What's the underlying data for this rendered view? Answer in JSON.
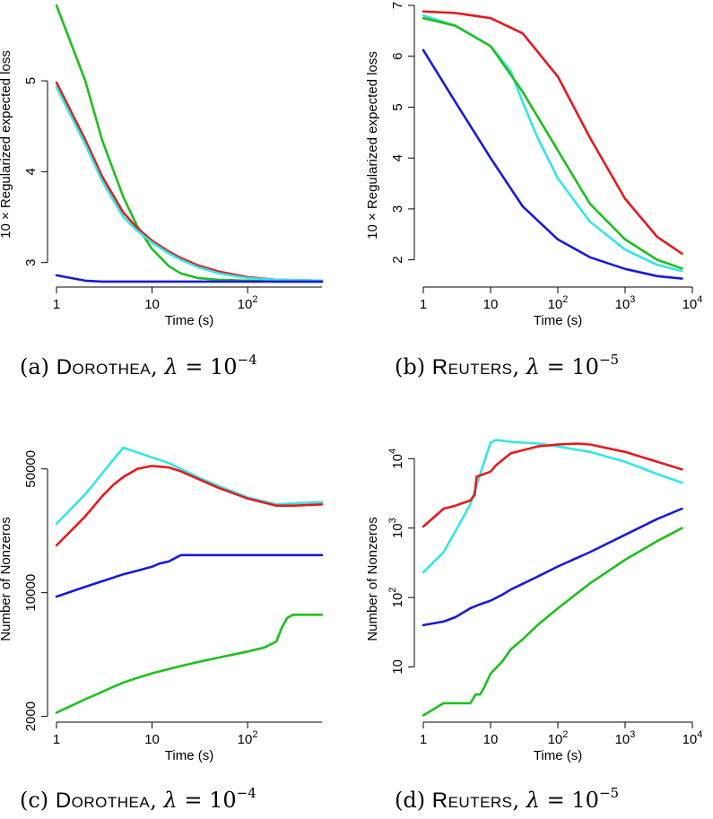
{
  "colors": {
    "red": "#e41a1c",
    "cyan": "#33e6e6",
    "green": "#1fbf1f",
    "blue": "#1a1ad6"
  },
  "chart_data": [
    {
      "type": "line",
      "caption": {
        "letter": "(a)",
        "dataset": "Dorothea",
        "lambda_sym": "λ",
        "eq": "= 10",
        "exp": "−4"
      },
      "xlabel": "Time (s)",
      "ylabel": "10 × Regularized expected loss",
      "xscale": "log",
      "yscale": "linear",
      "xlim": [
        1,
        600
      ],
      "ylim": [
        2.75,
        5.85
      ],
      "xticks": [
        {
          "v": 1,
          "base": "1",
          "exp": ""
        },
        {
          "v": 10,
          "base": "10",
          "exp": ""
        },
        {
          "v": 100,
          "base": "10",
          "exp": "2"
        }
      ],
      "yticks": [
        {
          "v": 3,
          "label": "3"
        },
        {
          "v": 4,
          "label": "4"
        },
        {
          "v": 5,
          "label": "5"
        }
      ],
      "series": [
        {
          "color": "green",
          "x": [
            1,
            2,
            3,
            5,
            7,
            10,
            15,
            20,
            30,
            50,
            100,
            200,
            600
          ],
          "y": [
            5.83,
            5.0,
            4.35,
            3.72,
            3.4,
            3.15,
            2.96,
            2.88,
            2.83,
            2.81,
            2.8,
            2.79,
            2.79
          ]
        },
        {
          "color": "red",
          "x": [
            1,
            2,
            3,
            5,
            7,
            10,
            15,
            20,
            30,
            50,
            100,
            200,
            600
          ],
          "y": [
            4.98,
            4.35,
            3.95,
            3.55,
            3.38,
            3.24,
            3.12,
            3.05,
            2.97,
            2.9,
            2.84,
            2.81,
            2.8
          ]
        },
        {
          "color": "cyan",
          "x": [
            1,
            2,
            3,
            5,
            7,
            10,
            15,
            20,
            30,
            50,
            100,
            200,
            600
          ],
          "y": [
            4.93,
            4.3,
            3.9,
            3.5,
            3.35,
            3.22,
            3.1,
            3.03,
            2.95,
            2.88,
            2.83,
            2.81,
            2.8
          ]
        },
        {
          "color": "blue",
          "x": [
            1,
            2,
            3,
            10,
            100,
            600
          ],
          "y": [
            2.86,
            2.8,
            2.79,
            2.79,
            2.79,
            2.79
          ]
        }
      ]
    },
    {
      "type": "line",
      "caption": {
        "letter": "(b)",
        "dataset": "Reuters",
        "lambda_sym": "λ",
        "eq": "= 10",
        "exp": "−5"
      },
      "xlabel": "Time (s)",
      "ylabel": "10 × Regularized expected loss",
      "xscale": "log",
      "yscale": "linear",
      "xlim": [
        1,
        10000
      ],
      "ylim": [
        1.5,
        7.0
      ],
      "xticks": [
        {
          "v": 1,
          "base": "1",
          "exp": ""
        },
        {
          "v": 10,
          "base": "10",
          "exp": ""
        },
        {
          "v": 100,
          "base": "10",
          "exp": "2"
        },
        {
          "v": 1000,
          "base": "10",
          "exp": "3"
        },
        {
          "v": 10000,
          "base": "10",
          "exp": "4"
        }
      ],
      "yticks": [
        {
          "v": 2,
          "label": "2"
        },
        {
          "v": 3,
          "label": "3"
        },
        {
          "v": 4,
          "label": "4"
        },
        {
          "v": 5,
          "label": "5"
        },
        {
          "v": 6,
          "label": "6"
        },
        {
          "v": 7,
          "label": "7"
        }
      ],
      "series": [
        {
          "color": "red",
          "x": [
            1,
            3,
            10,
            30,
            100,
            300,
            1000,
            3000,
            7000
          ],
          "y": [
            6.88,
            6.85,
            6.75,
            6.45,
            5.6,
            4.4,
            3.2,
            2.45,
            2.12
          ]
        },
        {
          "color": "cyan",
          "x": [
            1,
            3,
            10,
            20,
            30,
            50,
            100,
            300,
            1000,
            3000,
            7000
          ],
          "y": [
            6.8,
            6.6,
            6.2,
            5.7,
            5.1,
            4.4,
            3.6,
            2.75,
            2.2,
            1.9,
            1.78
          ]
        },
        {
          "color": "green",
          "x": [
            1,
            3,
            10,
            30,
            100,
            300,
            1000,
            3000,
            7000
          ],
          "y": [
            6.75,
            6.6,
            6.2,
            5.3,
            4.15,
            3.1,
            2.4,
            2.0,
            1.83
          ]
        },
        {
          "color": "blue",
          "x": [
            1,
            3,
            10,
            30,
            100,
            300,
            1000,
            3000,
            7000
          ],
          "y": [
            6.12,
            5.1,
            4.0,
            3.05,
            2.4,
            2.05,
            1.82,
            1.68,
            1.63
          ]
        }
      ]
    },
    {
      "type": "line",
      "caption": {
        "letter": "(c)",
        "dataset": "Dorothea",
        "lambda_sym": "λ",
        "eq": "= 10",
        "exp": "−4"
      },
      "xlabel": "Time (s)",
      "ylabel": "Number of Nonzeros",
      "xscale": "log",
      "yscale": "log",
      "xlim": [
        1,
        600
      ],
      "ylim": [
        1900,
        75000
      ],
      "xticks": [
        {
          "v": 1,
          "base": "1",
          "exp": ""
        },
        {
          "v": 10,
          "base": "10",
          "exp": ""
        },
        {
          "v": 100,
          "base": "10",
          "exp": "2"
        }
      ],
      "yticks": [
        {
          "v": 2000,
          "label": "2000"
        },
        {
          "v": 10000,
          "label": "10000"
        },
        {
          "v": 50000,
          "label": "50000"
        }
      ],
      "series": [
        {
          "color": "cyan",
          "x": [
            1,
            2,
            3,
            4,
            5,
            7,
            10,
            15,
            20,
            30,
            50,
            100,
            200,
            300,
            600
          ],
          "y": [
            24500,
            36000,
            47000,
            57000,
            66000,
            62000,
            58000,
            54000,
            50000,
            45000,
            40000,
            34500,
            31500,
            32000,
            32500
          ]
        },
        {
          "color": "red",
          "x": [
            1,
            2,
            3,
            4,
            5,
            7,
            10,
            15,
            20,
            30,
            50,
            100,
            200,
            300,
            600
          ],
          "y": [
            18500,
            27000,
            35000,
            41000,
            45000,
            50000,
            52000,
            51000,
            48500,
            44000,
            39000,
            34000,
            31000,
            31000,
            31500
          ]
        },
        {
          "color": "blue",
          "x": [
            1,
            2,
            3,
            5,
            7,
            10,
            12,
            15,
            20,
            100,
            600
          ],
          "y": [
            9500,
            10800,
            11600,
            12700,
            13300,
            14000,
            14600,
            15000,
            16300,
            16300,
            16300
          ]
        },
        {
          "color": "green",
          "x": [
            1,
            2,
            3,
            4,
            5,
            7,
            10,
            15,
            20,
            30,
            50,
            100,
            150,
            200,
            230,
            260,
            300,
            600
          ],
          "y": [
            2100,
            2500,
            2750,
            2950,
            3100,
            3300,
            3500,
            3700,
            3850,
            4050,
            4300,
            4650,
            4900,
            5300,
            6400,
            7200,
            7500,
            7500
          ]
        }
      ]
    },
    {
      "type": "line",
      "caption": {
        "letter": "(d)",
        "dataset": "Reuters",
        "lambda_sym": "λ",
        "eq": "= 10",
        "exp": "−5"
      },
      "xlabel": "Time (s)",
      "ylabel": "Number of Nonzeros",
      "xscale": "log",
      "yscale": "log",
      "xlim": [
        1,
        10000
      ],
      "ylim": [
        1.7,
        20000
      ],
      "xticks": [
        {
          "v": 1,
          "base": "1",
          "exp": ""
        },
        {
          "v": 10,
          "base": "10",
          "exp": ""
        },
        {
          "v": 100,
          "base": "10",
          "exp": "2"
        },
        {
          "v": 1000,
          "base": "10",
          "exp": "3"
        },
        {
          "v": 10000,
          "base": "10",
          "exp": "4"
        }
      ],
      "yticks": [
        {
          "v": 10,
          "base": "10",
          "exp": ""
        },
        {
          "v": 100,
          "base": "10",
          "exp": "2"
        },
        {
          "v": 1000,
          "base": "10",
          "exp": "3"
        },
        {
          "v": 10000,
          "base": "10",
          "exp": "4"
        }
      ],
      "series": [
        {
          "color": "cyan",
          "x": [
            1,
            2,
            3,
            5,
            7,
            10,
            12,
            20,
            50,
            100,
            300,
            1000,
            3000,
            7000
          ],
          "y": [
            230,
            450,
            900,
            2200,
            6000,
            17000,
            18500,
            17500,
            16500,
            15000,
            12500,
            9000,
            6000,
            4500
          ]
        },
        {
          "color": "red",
          "x": [
            1,
            2,
            3,
            5,
            5.8,
            6.2,
            10,
            12,
            20,
            50,
            100,
            200,
            300,
            1000,
            3000,
            7000
          ],
          "y": [
            1050,
            1900,
            2100,
            2500,
            3000,
            5500,
            6500,
            8000,
            12000,
            15000,
            16000,
            16500,
            16000,
            12500,
            9000,
            7000
          ]
        },
        {
          "color": "blue",
          "x": [
            1,
            2,
            3,
            5,
            7,
            10,
            15,
            20,
            50,
            100,
            300,
            1000,
            3000,
            7000
          ],
          "y": [
            40,
            45,
            52,
            70,
            80,
            90,
            110,
            130,
            200,
            280,
            450,
            800,
            1350,
            1900
          ]
        },
        {
          "color": "green",
          "x": [
            1,
            2,
            3,
            5,
            6,
            7,
            8,
            10,
            15,
            20,
            30,
            50,
            100,
            300,
            1000,
            3000,
            7000
          ],
          "y": [
            2,
            3,
            3,
            3,
            4,
            4,
            5,
            8,
            12,
            18,
            25,
            40,
            70,
            160,
            350,
            650,
            1000
          ]
        }
      ]
    }
  ]
}
